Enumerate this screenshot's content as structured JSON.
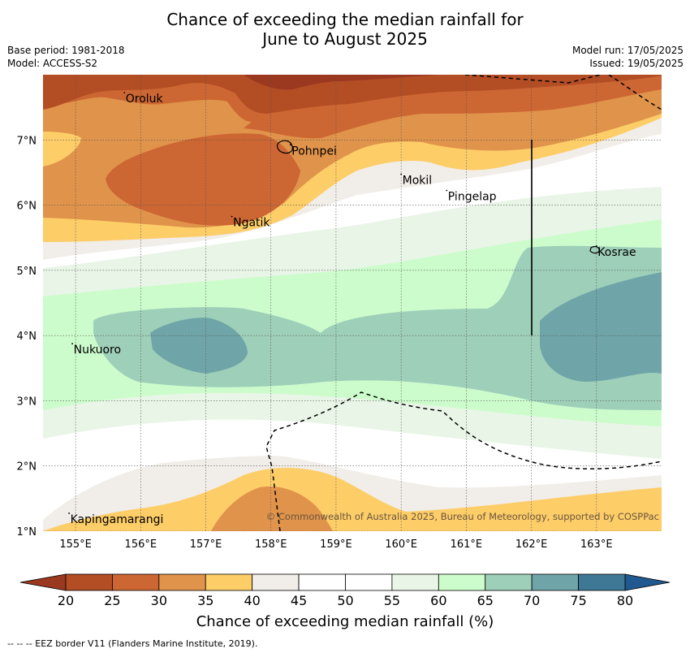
{
  "title_line1": "Chance of exceeding the median rainfall for",
  "title_line2": "June to August 2025",
  "meta_left": [
    "Base period: 1981-2018",
    "Model: ACCESS-S2"
  ],
  "meta_right": [
    "Model run: 17/05/2025",
    "Issued: 19/05/2025"
  ],
  "lon_labels": [
    "155°E",
    "156°E",
    "157°E",
    "158°E",
    "159°E",
    "160°E",
    "161°E",
    "162°E",
    "163°E"
  ],
  "lon_values": [
    155,
    156,
    157,
    158,
    159,
    160,
    161,
    162,
    163
  ],
  "lat_labels": [
    "7°N",
    "6°N",
    "5°N",
    "4°N",
    "3°N",
    "2°N",
    "1°N"
  ],
  "lat_values": [
    7,
    6,
    5,
    4,
    3,
    2,
    1
  ],
  "extent": {
    "lon": [
      154.5,
      164.0
    ],
    "lat": [
      1.0,
      8.0
    ]
  },
  "places": [
    {
      "name": "Oroluk",
      "lon": 155.75,
      "lat": 7.65
    },
    {
      "name": "Pohnpei",
      "lon": 158.3,
      "lat": 6.85
    },
    {
      "name": "Mokil",
      "lon": 160.0,
      "lat": 6.4
    },
    {
      "name": "Pingelap",
      "lon": 160.7,
      "lat": 6.15
    },
    {
      "name": "Ngatik",
      "lon": 157.4,
      "lat": 5.75
    },
    {
      "name": "Kosrae",
      "lon": 163.0,
      "lat": 5.3
    },
    {
      "name": "Nukuoro",
      "lon": 154.95,
      "lat": 3.8
    },
    {
      "name": "Kapingamarangi",
      "lon": 154.9,
      "lat": 1.2
    }
  ],
  "copyright": "© Commonwealth of Australia 2025, Bureau of Meteorology, supported by COSPPac",
  "colorbar": {
    "ticks": [
      "20",
      "25",
      "30",
      "35",
      "40",
      "45",
      "50",
      "55",
      "60",
      "65",
      "70",
      "75",
      "80"
    ],
    "colors": [
      "#b34d24",
      "#cc6633",
      "#e0934a",
      "#fdcd68",
      "#f1ede8",
      "#ffffff",
      "#ffffff",
      "#e9f5e7",
      "#ccfccc",
      "#9ecfb9",
      "#6fa5a8",
      "#3f7895"
    ],
    "under_color": "#9b3820",
    "over_color": "#205890",
    "label": "Chance of exceeding median rainfall (%)"
  },
  "footnote": "--  --  -- EEZ border V11 (Flanders Marine Institute, 2019).",
  "chart_data": {
    "type": "heatmap",
    "title": "Chance of exceeding the median rainfall for June to August 2025",
    "xlabel": "",
    "ylabel": "",
    "unit": "%",
    "xlim": [
      154.5,
      164.0
    ],
    "ylim": [
      1.0,
      8.0
    ],
    "levels": [
      20,
      25,
      30,
      35,
      40,
      45,
      50,
      55,
      60,
      65,
      70,
      75,
      80
    ]
  }
}
